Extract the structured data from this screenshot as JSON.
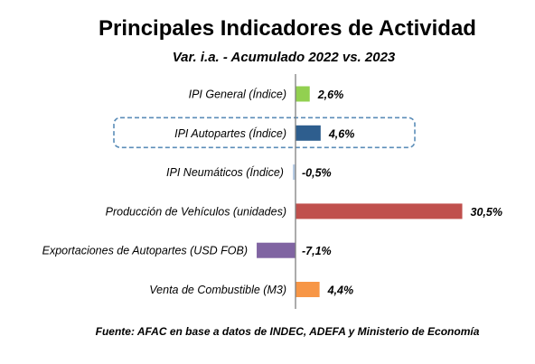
{
  "chart_data": {
    "type": "bar",
    "orientation": "horizontal",
    "title": "Principales Indicadores de Actividad",
    "subtitle": "Var. i.a. - Acumulado 2022 vs. 2023",
    "categories": [
      "IPI General (Índice)",
      "IPI Autopartes (Índice)",
      "IPI Neumáticos (Índice)",
      "Producción de Vehículos (unidades)",
      "Exportaciones de Autopartes (USD FOB)",
      "Venta de Combustible (M3)"
    ],
    "values": [
      2.6,
      4.6,
      -0.5,
      30.5,
      -7.1,
      4.4
    ],
    "data_labels": [
      "2,6%",
      "4,6%",
      "-0,5%",
      "30,5%",
      "-7,1%",
      "4,4%"
    ],
    "colors": [
      "#92D050",
      "#2E5E8E",
      "#B8CCE4",
      "#C0504D",
      "#8064A2",
      "#F79646"
    ],
    "highlighted_category": "IPI Autopartes (Índice)",
    "source": "Fuente: AFAC en base a datos de INDEC, ADEFA y Ministerio de Economía"
  }
}
